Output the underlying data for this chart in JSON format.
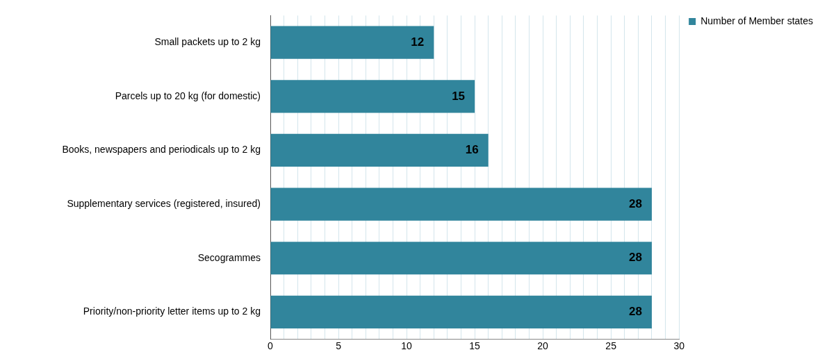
{
  "chart_data": {
    "type": "bar",
    "orientation": "horizontal",
    "categories": [
      "Small packets up to 2 kg",
      "Parcels up to 20 kg (for domestic)",
      "Books, newspapers and periodicals up to 2 kg",
      "Supplementary services (registered, insured)",
      "Secogrammes",
      "Priority/non-priority letter items up to 2 kg"
    ],
    "series": [
      {
        "name": "Number of Member states",
        "color": "#31859c",
        "values": [
          12,
          15,
          16,
          28,
          28,
          28
        ]
      }
    ],
    "xlim": [
      0,
      30
    ],
    "xticks": [
      0,
      {
        "value": 1,
        "label": null
      },
      {
        "value": 2,
        "label": null
      },
      {
        "value": 3,
        "label": null
      },
      {
        "value": 4,
        "label": null
      },
      5,
      {
        "value": 6,
        "label": null
      },
      {
        "value": 7,
        "label": null
      },
      {
        "value": 8,
        "label": null
      },
      {
        "value": 9,
        "label": null
      },
      10,
      {
        "value": 11,
        "label": null
      },
      {
        "value": 12,
        "label": null
      },
      {
        "value": 13,
        "label": null
      },
      {
        "value": 14,
        "label": null
      },
      15,
      {
        "value": 16,
        "label": null
      },
      {
        "value": 17,
        "label": null
      },
      {
        "value": 18,
        "label": null
      },
      {
        "value": 19,
        "label": null
      },
      20,
      {
        "value": 21,
        "label": null
      },
      {
        "value": 22,
        "label": null
      },
      {
        "value": 23,
        "label": null
      },
      {
        "value": 24,
        "label": null
      },
      25,
      {
        "value": 26,
        "label": null
      },
      {
        "value": 27,
        "label": null
      },
      {
        "value": 28,
        "label": null
      },
      {
        "value": 29,
        "label": null
      },
      30
    ],
    "grid": "x",
    "legend": "top right",
    "data_labels": true
  }
}
